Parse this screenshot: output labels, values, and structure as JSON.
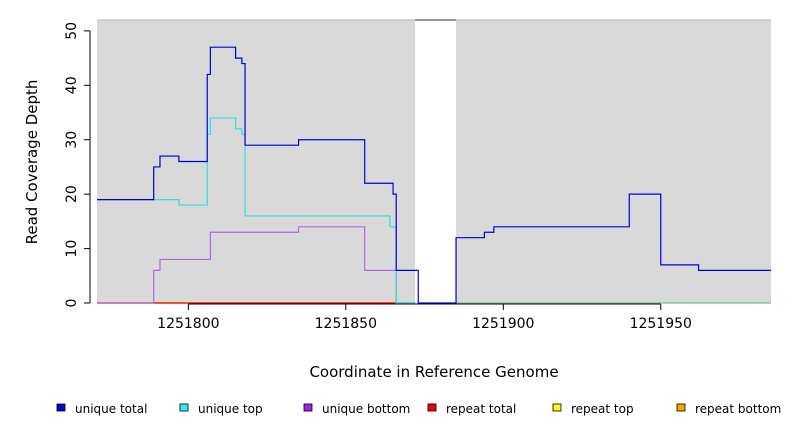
{
  "chart_data": {
    "type": "line",
    "xlabel": "Coordinate in Reference Genome",
    "ylabel": "Read Coverage Depth",
    "xlim": [
      1251771,
      1251985
    ],
    "ylim": [
      0,
      52
    ],
    "x_ticks": [
      1251800,
      1251850,
      1251900,
      1251950
    ],
    "x_tick_labels": [
      "1251800",
      "1251850",
      "1251900",
      "1251950"
    ],
    "y_ticks": [
      0,
      10,
      20,
      30,
      40,
      50
    ],
    "y_tick_labels": [
      "0",
      "10",
      "20",
      "30",
      "40",
      "50"
    ],
    "grid": false,
    "background_color": "#d9d9d9",
    "gap_regions": [
      [
        1251872,
        1251885
      ]
    ],
    "gap_color": "#ffffff",
    "legend_position": "bottom",
    "series": [
      {
        "name": "unique total",
        "color": "#0000dd",
        "x": [
          1251771,
          1251789,
          1251789,
          1251791,
          1251791,
          1251797,
          1251797,
          1251806,
          1251806,
          1251807,
          1251807,
          1251815,
          1251815,
          1251817,
          1251817,
          1251818,
          1251818,
          1251835,
          1251835,
          1251856,
          1251856,
          1251865,
          1251865,
          1251866,
          1251866,
          1251873,
          1251873,
          1251885,
          1251885,
          1251894,
          1251894,
          1251897,
          1251897,
          1251940,
          1251940,
          1251950,
          1251950,
          1251962,
          1251962,
          1251985
        ],
        "y": [
          19,
          19,
          25,
          25,
          27,
          27,
          26,
          26,
          42,
          42,
          47,
          47,
          45,
          45,
          44,
          44,
          29,
          29,
          30,
          30,
          22,
          22,
          20,
          20,
          6,
          6,
          0,
          0,
          12,
          12,
          13,
          13,
          14,
          14,
          20,
          20,
          7,
          7,
          6,
          6
        ]
      },
      {
        "name": "unique top",
        "color": "#33dddd",
        "x": [
          1251771,
          1251797,
          1251797,
          1251806,
          1251806,
          1251807,
          1251807,
          1251815,
          1251815,
          1251817,
          1251817,
          1251818,
          1251818,
          1251864,
          1251864,
          1251866,
          1251866,
          1251872
        ],
        "y": [
          19,
          19,
          18,
          18,
          31,
          31,
          34,
          34,
          32,
          32,
          31,
          31,
          16,
          16,
          14,
          14,
          0,
          0
        ]
      },
      {
        "name": "unique bottom",
        "color": "#b066e6",
        "x": [
          1251771,
          1251789,
          1251789,
          1251791,
          1251791,
          1251807,
          1251807,
          1251835,
          1251835,
          1251856,
          1251856,
          1251866,
          1251866,
          1251872
        ],
        "y": [
          0,
          0,
          6,
          6,
          8,
          8,
          13,
          13,
          14,
          14,
          6,
          6,
          0,
          0
        ]
      },
      {
        "name": "repeat total",
        "color": "#ee0000",
        "x": [
          1251771,
          1251872
        ],
        "y": [
          0,
          0
        ]
      },
      {
        "name": "repeat top",
        "color": "#eeee00",
        "x": [
          1251771,
          1251872
        ],
        "y": [
          0,
          0
        ]
      },
      {
        "name": "repeat bottom",
        "color": "#ee9900",
        "x": [
          1251771,
          1251866
        ],
        "y": [
          0,
          0
        ]
      },
      {
        "name": "",
        "color": "#66cc66",
        "x": [
          1251885,
          1251985
        ],
        "y": [
          0,
          0
        ]
      }
    ]
  },
  "legend": [
    {
      "label": "unique total",
      "color": "#0000dd"
    },
    {
      "label": "unique top",
      "color": "#33eeee"
    },
    {
      "label": "unique bottom",
      "color": "#a020f0"
    },
    {
      "label": "repeat total",
      "color": "#ee0000"
    },
    {
      "label": "repeat top",
      "color": "#ffff00"
    },
    {
      "label": "repeat bottom",
      "color": "#ffa500"
    }
  ]
}
